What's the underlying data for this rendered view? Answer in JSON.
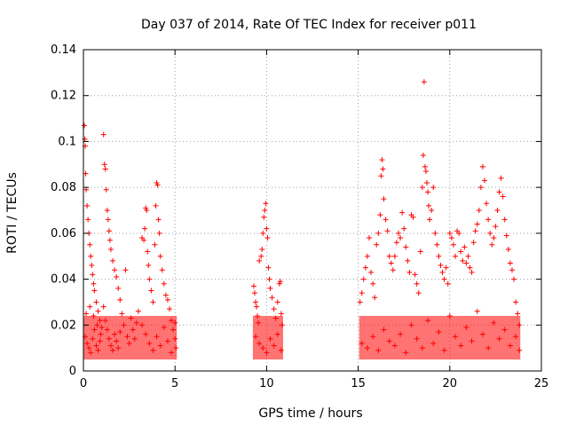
{
  "chart_data": {
    "type": "scatter",
    "title": "Day 037 of 2014, Rate Of TEC Index for receiver p011",
    "xlabel": "GPS time / hours",
    "ylabel": "ROTI / TECUs",
    "xlim": [
      0,
      25
    ],
    "ylim": [
      0,
      0.14
    ],
    "xticks": [
      0,
      5,
      10,
      15,
      20,
      25
    ],
    "xtick_labels": [
      "0",
      "5",
      "10",
      "15",
      "20",
      "25"
    ],
    "yticks": [
      0,
      0.02,
      0.04,
      0.06,
      0.08,
      0.1,
      0.12,
      0.14
    ],
    "ytick_labels": [
      "0",
      "0.02",
      "0.04",
      "0.06",
      "0.08",
      "0.1",
      "0.12",
      "0.14"
    ],
    "grid": true,
    "marker": "plus",
    "color": "#ff0000",
    "series": [
      {
        "name": "p011 ROTI",
        "points": [
          [
            0.05,
            0.107
          ],
          [
            0.08,
            0.101
          ],
          [
            0.1,
            0.098
          ],
          [
            0.12,
            0.086
          ],
          [
            0.15,
            0.079
          ],
          [
            0.2,
            0.072
          ],
          [
            0.25,
            0.066
          ],
          [
            0.3,
            0.06
          ],
          [
            0.35,
            0.055
          ],
          [
            0.4,
            0.05
          ],
          [
            0.45,
            0.046
          ],
          [
            0.5,
            0.042
          ],
          [
            0.55,
            0.038
          ],
          [
            0.6,
            0.035
          ],
          [
            0.7,
            0.03
          ],
          [
            0.8,
            0.026
          ],
          [
            0.9,
            0.022
          ],
          [
            1.0,
            0.019
          ],
          [
            0.1,
            0.015
          ],
          [
            0.2,
            0.012
          ],
          [
            0.3,
            0.01
          ],
          [
            0.4,
            0.008
          ],
          [
            0.5,
            0.014
          ],
          [
            0.6,
            0.018
          ],
          [
            0.7,
            0.011
          ],
          [
            0.8,
            0.009
          ],
          [
            0.9,
            0.013
          ],
          [
            0.15,
            0.025
          ],
          [
            0.35,
            0.028
          ],
          [
            0.55,
            0.024
          ],
          [
            0.75,
            0.02
          ],
          [
            0.95,
            0.016
          ],
          [
            1.1,
            0.103
          ],
          [
            1.15,
            0.09
          ],
          [
            1.2,
            0.088
          ],
          [
            1.25,
            0.079
          ],
          [
            1.3,
            0.07
          ],
          [
            1.35,
            0.066
          ],
          [
            1.4,
            0.061
          ],
          [
            1.45,
            0.057
          ],
          [
            1.5,
            0.053
          ],
          [
            1.6,
            0.048
          ],
          [
            1.7,
            0.044
          ],
          [
            1.8,
            0.041
          ],
          [
            1.9,
            0.036
          ],
          [
            2.0,
            0.031
          ],
          [
            1.1,
            0.028
          ],
          [
            1.2,
            0.022
          ],
          [
            1.3,
            0.018
          ],
          [
            1.4,
            0.014
          ],
          [
            1.5,
            0.011
          ],
          [
            1.6,
            0.009
          ],
          [
            1.7,
            0.016
          ],
          [
            1.8,
            0.013
          ],
          [
            1.9,
            0.01
          ],
          [
            2.0,
            0.017
          ],
          [
            2.1,
            0.025
          ],
          [
            2.2,
            0.02
          ],
          [
            2.3,
            0.044
          ],
          [
            2.4,
            0.015
          ],
          [
            2.5,
            0.012
          ],
          [
            2.6,
            0.023
          ],
          [
            2.7,
            0.018
          ],
          [
            2.8,
            0.014
          ],
          [
            2.9,
            0.021
          ],
          [
            3.0,
            0.026
          ],
          [
            3.2,
            0.058
          ],
          [
            3.3,
            0.057
          ],
          [
            3.35,
            0.062
          ],
          [
            3.4,
            0.071
          ],
          [
            3.45,
            0.07
          ],
          [
            3.5,
            0.052
          ],
          [
            3.55,
            0.046
          ],
          [
            3.6,
            0.04
          ],
          [
            3.7,
            0.035
          ],
          [
            3.8,
            0.03
          ],
          [
            3.9,
            0.055
          ],
          [
            3.95,
            0.072
          ],
          [
            4.0,
            0.082
          ],
          [
            4.05,
            0.081
          ],
          [
            4.1,
            0.066
          ],
          [
            4.15,
            0.06
          ],
          [
            4.2,
            0.05
          ],
          [
            4.3,
            0.044
          ],
          [
            4.4,
            0.038
          ],
          [
            4.5,
            0.033
          ],
          [
            4.6,
            0.031
          ],
          [
            4.7,
            0.027
          ],
          [
            4.8,
            0.022
          ],
          [
            4.9,
            0.018
          ],
          [
            5.0,
            0.014
          ],
          [
            5.05,
            0.01
          ],
          [
            3.2,
            0.02
          ],
          [
            3.4,
            0.016
          ],
          [
            3.6,
            0.012
          ],
          [
            3.8,
            0.009
          ],
          [
            4.0,
            0.015
          ],
          [
            4.2,
            0.011
          ],
          [
            4.4,
            0.019
          ],
          [
            4.6,
            0.013
          ],
          [
            4.8,
            0.008
          ],
          [
            5.0,
            0.021
          ],
          [
            9.3,
            0.037
          ],
          [
            9.35,
            0.034
          ],
          [
            9.4,
            0.03
          ],
          [
            9.45,
            0.028
          ],
          [
            9.5,
            0.024
          ],
          [
            9.55,
            0.021
          ],
          [
            9.6,
            0.048
          ],
          [
            9.7,
            0.05
          ],
          [
            9.75,
            0.053
          ],
          [
            9.8,
            0.06
          ],
          [
            9.85,
            0.067
          ],
          [
            9.9,
            0.07
          ],
          [
            9.95,
            0.073
          ],
          [
            10.0,
            0.062
          ],
          [
            10.05,
            0.058
          ],
          [
            10.1,
            0.045
          ],
          [
            10.15,
            0.04
          ],
          [
            10.2,
            0.036
          ],
          [
            10.3,
            0.032
          ],
          [
            10.4,
            0.027
          ],
          [
            10.5,
            0.023
          ],
          [
            10.6,
            0.03
          ],
          [
            10.7,
            0.038
          ],
          [
            10.75,
            0.039
          ],
          [
            10.8,
            0.025
          ],
          [
            10.85,
            0.02
          ],
          [
            9.4,
            0.015
          ],
          [
            9.6,
            0.012
          ],
          [
            9.8,
            0.01
          ],
          [
            10.0,
            0.008
          ],
          [
            10.2,
            0.014
          ],
          [
            10.4,
            0.011
          ],
          [
            10.6,
            0.016
          ],
          [
            10.8,
            0.009
          ],
          [
            15.1,
            0.03
          ],
          [
            15.2,
            0.034
          ],
          [
            15.3,
            0.04
          ],
          [
            15.4,
            0.045
          ],
          [
            15.5,
            0.05
          ],
          [
            15.6,
            0.058
          ],
          [
            15.7,
            0.043
          ],
          [
            15.8,
            0.038
          ],
          [
            15.9,
            0.032
          ],
          [
            16.0,
            0.055
          ],
          [
            16.1,
            0.06
          ],
          [
            16.2,
            0.068
          ],
          [
            16.25,
            0.085
          ],
          [
            16.3,
            0.092
          ],
          [
            16.35,
            0.088
          ],
          [
            16.4,
            0.075
          ],
          [
            16.5,
            0.066
          ],
          [
            16.6,
            0.061
          ],
          [
            16.7,
            0.05
          ],
          [
            16.8,
            0.047
          ],
          [
            16.9,
            0.044
          ],
          [
            17.0,
            0.05
          ],
          [
            17.1,
            0.056
          ],
          [
            17.2,
            0.06
          ],
          [
            17.3,
            0.058
          ],
          [
            17.4,
            0.069
          ],
          [
            17.5,
            0.062
          ],
          [
            17.6,
            0.054
          ],
          [
            17.7,
            0.048
          ],
          [
            17.8,
            0.043
          ],
          [
            17.9,
            0.068
          ],
          [
            18.0,
            0.067
          ],
          [
            18.1,
            0.042
          ],
          [
            18.2,
            0.038
          ],
          [
            18.3,
            0.034
          ],
          [
            18.4,
            0.052
          ],
          [
            18.5,
            0.08
          ],
          [
            18.55,
            0.094
          ],
          [
            18.6,
            0.126
          ],
          [
            18.65,
            0.089
          ],
          [
            18.7,
            0.087
          ],
          [
            18.75,
            0.082
          ],
          [
            18.8,
            0.078
          ],
          [
            18.85,
            0.072
          ],
          [
            18.9,
            0.066
          ],
          [
            19.0,
            0.07
          ],
          [
            19.1,
            0.08
          ],
          [
            19.2,
            0.06
          ],
          [
            19.3,
            0.055
          ],
          [
            19.4,
            0.05
          ],
          [
            19.5,
            0.046
          ],
          [
            19.6,
            0.043
          ],
          [
            19.7,
            0.04
          ],
          [
            19.8,
            0.045
          ],
          [
            19.9,
            0.038
          ],
          [
            20.0,
            0.06
          ],
          [
            20.1,
            0.058
          ],
          [
            20.2,
            0.055
          ],
          [
            20.3,
            0.05
          ],
          [
            20.4,
            0.061
          ],
          [
            20.5,
            0.06
          ],
          [
            20.6,
            0.052
          ],
          [
            20.7,
            0.048
          ],
          [
            20.8,
            0.054
          ],
          [
            20.9,
            0.047
          ],
          [
            21.0,
            0.05
          ],
          [
            21.1,
            0.045
          ],
          [
            21.2,
            0.043
          ],
          [
            21.3,
            0.056
          ],
          [
            21.4,
            0.061
          ],
          [
            21.5,
            0.064
          ],
          [
            21.6,
            0.07
          ],
          [
            21.7,
            0.08
          ],
          [
            21.8,
            0.089
          ],
          [
            21.9,
            0.083
          ],
          [
            22.0,
            0.073
          ],
          [
            22.1,
            0.066
          ],
          [
            22.2,
            0.06
          ],
          [
            22.3,
            0.055
          ],
          [
            22.4,
            0.058
          ],
          [
            22.5,
            0.063
          ],
          [
            22.6,
            0.07
          ],
          [
            22.7,
            0.078
          ],
          [
            22.8,
            0.084
          ],
          [
            22.9,
            0.076
          ],
          [
            23.0,
            0.066
          ],
          [
            23.1,
            0.059
          ],
          [
            23.2,
            0.053
          ],
          [
            23.3,
            0.047
          ],
          [
            23.4,
            0.044
          ],
          [
            23.5,
            0.04
          ],
          [
            23.6,
            0.03
          ],
          [
            23.7,
            0.025
          ],
          [
            23.8,
            0.02
          ],
          [
            15.2,
            0.012
          ],
          [
            15.5,
            0.01
          ],
          [
            15.8,
            0.015
          ],
          [
            16.1,
            0.009
          ],
          [
            16.4,
            0.018
          ],
          [
            16.7,
            0.013
          ],
          [
            17.0,
            0.011
          ],
          [
            17.3,
            0.016
          ],
          [
            17.6,
            0.008
          ],
          [
            17.9,
            0.02
          ],
          [
            18.2,
            0.014
          ],
          [
            18.5,
            0.01
          ],
          [
            18.8,
            0.022
          ],
          [
            19.1,
            0.012
          ],
          [
            19.4,
            0.017
          ],
          [
            19.7,
            0.009
          ],
          [
            20.0,
            0.024
          ],
          [
            20.3,
            0.015
          ],
          [
            20.6,
            0.011
          ],
          [
            20.9,
            0.019
          ],
          [
            21.2,
            0.013
          ],
          [
            21.5,
            0.026
          ],
          [
            21.8,
            0.016
          ],
          [
            22.1,
            0.01
          ],
          [
            22.4,
            0.021
          ],
          [
            22.7,
            0.014
          ],
          [
            23.0,
            0.018
          ],
          [
            23.3,
            0.011
          ],
          [
            23.6,
            0.015
          ],
          [
            23.8,
            0.009
          ]
        ]
      }
    ]
  }
}
